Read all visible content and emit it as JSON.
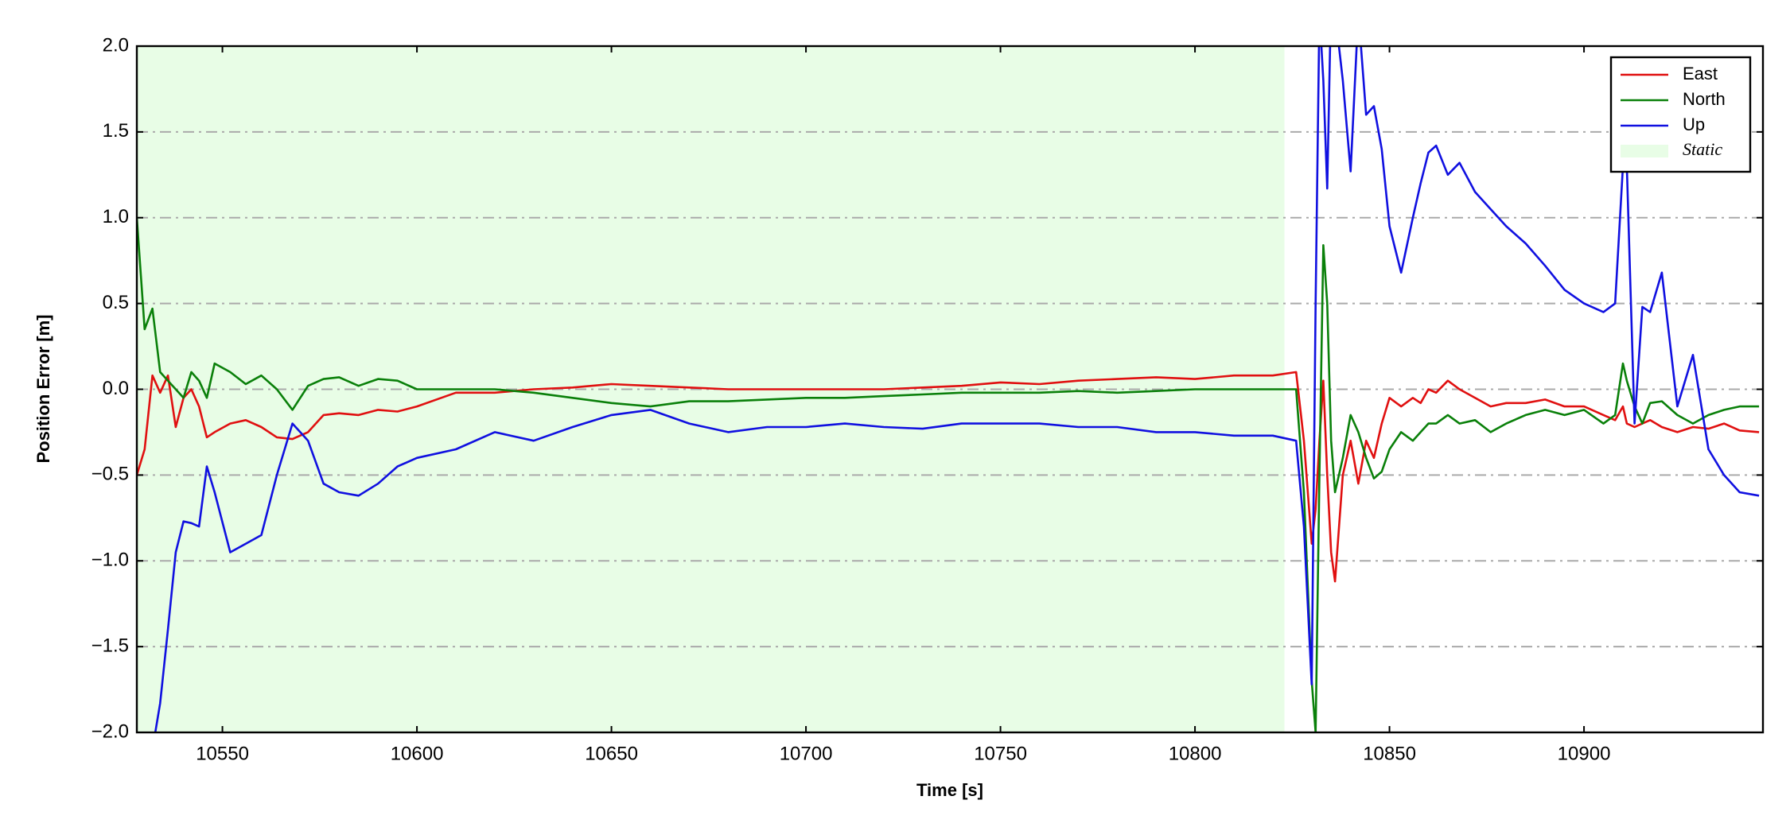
{
  "chart_data": {
    "type": "line",
    "xlabel": "Time [s]",
    "ylabel": "Position Error [m]",
    "x": [
      10528,
      10530,
      10532,
      10534,
      10536,
      10538,
      10540,
      10542,
      10544,
      10546,
      10548,
      10552,
      10556,
      10560,
      10564,
      10568,
      10572,
      10576,
      10580,
      10585,
      10590,
      10595,
      10600,
      10610,
      10620,
      10630,
      10640,
      10650,
      10660,
      10670,
      10680,
      10690,
      10700,
      10710,
      10720,
      10730,
      10740,
      10750,
      10760,
      10770,
      10780,
      10790,
      10800,
      10810,
      10820,
      10826,
      10828,
      10830,
      10831,
      10832,
      10833,
      10834,
      10835,
      10836,
      10838,
      10840,
      10842,
      10844,
      10846,
      10848,
      10850,
      10853,
      10856,
      10858,
      10860,
      10862,
      10865,
      10868,
      10872,
      10876,
      10880,
      10885,
      10890,
      10895,
      10900,
      10905,
      10908,
      10910,
      10911,
      10913,
      10915,
      10917,
      10920,
      10924,
      10928,
      10932,
      10936,
      10940,
      10945
    ],
    "series": [
      {
        "name": "East",
        "color": "#e01010",
        "values": [
          -0.5,
          -0.35,
          0.08,
          -0.02,
          0.08,
          -0.22,
          -0.05,
          0.0,
          -0.1,
          -0.28,
          -0.25,
          -0.2,
          -0.18,
          -0.22,
          -0.28,
          -0.29,
          -0.25,
          -0.15,
          -0.14,
          -0.15,
          -0.12,
          -0.13,
          -0.1,
          -0.02,
          -0.02,
          0.0,
          0.01,
          0.03,
          0.02,
          0.01,
          0.0,
          0.0,
          0.0,
          0.0,
          0.0,
          0.01,
          0.02,
          0.04,
          0.03,
          0.05,
          0.06,
          0.07,
          0.06,
          0.08,
          0.08,
          0.1,
          -0.3,
          -0.9,
          -0.7,
          -0.3,
          0.05,
          -0.5,
          -0.95,
          -1.12,
          -0.5,
          -0.3,
          -0.55,
          -0.3,
          -0.4,
          -0.2,
          -0.05,
          -0.1,
          -0.05,
          -0.08,
          0.0,
          -0.02,
          0.05,
          0.0,
          -0.05,
          -0.1,
          -0.08,
          -0.08,
          -0.06,
          -0.1,
          -0.1,
          -0.15,
          -0.18,
          -0.1,
          -0.2,
          -0.22,
          -0.2,
          -0.18,
          -0.22,
          -0.25,
          -0.22,
          -0.23,
          -0.2,
          -0.24,
          -0.25
        ]
      },
      {
        "name": "North",
        "color": "#0a800a",
        "values": [
          1.0,
          0.35,
          0.47,
          0.1,
          0.05,
          0.0,
          -0.05,
          0.1,
          0.05,
          -0.05,
          0.15,
          0.1,
          0.03,
          0.08,
          0.0,
          -0.12,
          0.02,
          0.06,
          0.07,
          0.02,
          0.06,
          0.05,
          0.0,
          0.0,
          0.0,
          -0.02,
          -0.05,
          -0.08,
          -0.1,
          -0.07,
          -0.07,
          -0.06,
          -0.05,
          -0.05,
          -0.04,
          -0.03,
          -0.02,
          -0.02,
          -0.02,
          -0.01,
          -0.02,
          -0.01,
          0.0,
          0.0,
          0.0,
          0.0,
          -0.6,
          -1.7,
          -2.0,
          -0.5,
          0.84,
          0.5,
          -0.3,
          -0.6,
          -0.4,
          -0.15,
          -0.25,
          -0.4,
          -0.52,
          -0.48,
          -0.35,
          -0.25,
          -0.3,
          -0.25,
          -0.2,
          -0.2,
          -0.15,
          -0.2,
          -0.18,
          -0.25,
          -0.2,
          -0.15,
          -0.12,
          -0.15,
          -0.12,
          -0.2,
          -0.15,
          0.15,
          0.05,
          -0.1,
          -0.2,
          -0.08,
          -0.07,
          -0.15,
          -0.2,
          -0.15,
          -0.12,
          -0.1,
          -0.1
        ]
      },
      {
        "name": "Up",
        "color": "#1010e0",
        "values": [
          null,
          null,
          -2.1,
          -1.83,
          -1.4,
          -0.95,
          -0.77,
          -0.78,
          -0.8,
          -0.45,
          -0.6,
          -0.95,
          -0.9,
          -0.85,
          -0.5,
          -0.2,
          -0.3,
          -0.55,
          -0.6,
          -0.62,
          -0.55,
          -0.45,
          -0.4,
          -0.35,
          -0.25,
          -0.3,
          -0.22,
          -0.15,
          -0.12,
          -0.2,
          -0.25,
          -0.22,
          -0.22,
          -0.2,
          -0.22,
          -0.23,
          -0.2,
          -0.2,
          -0.2,
          -0.22,
          -0.22,
          -0.25,
          -0.25,
          -0.27,
          -0.27,
          -0.3,
          -0.8,
          -1.72,
          0.5,
          2.2,
          1.8,
          1.17,
          2.3,
          2.2,
          1.8,
          1.27,
          2.2,
          1.6,
          1.65,
          1.4,
          0.95,
          0.68,
          1.0,
          1.2,
          1.38,
          1.42,
          1.25,
          1.32,
          1.15,
          1.05,
          0.95,
          0.85,
          0.72,
          0.58,
          0.5,
          0.45,
          0.5,
          1.3,
          1.3,
          -0.2,
          0.48,
          0.45,
          0.68,
          -0.1,
          0.2,
          -0.35,
          -0.5,
          -0.6,
          -0.62
        ]
      }
    ],
    "spans": [
      {
        "label": "Static",
        "start": 10528,
        "end": 10823,
        "color": "#e8fde6"
      }
    ],
    "xlim": [
      10528,
      10946
    ],
    "xticks": [
      10550,
      10600,
      10650,
      10700,
      10750,
      10800,
      10850,
      10900
    ],
    "ylim": [
      -2,
      2
    ],
    "yticks": [
      {
        "value": -2,
        "label": "−2.0"
      },
      {
        "value": -1.5,
        "label": "−1.5"
      },
      {
        "value": -1,
        "label": "−1.0"
      },
      {
        "value": -0.5,
        "label": "−0.5"
      },
      {
        "value": 0,
        "label": "0.0"
      },
      {
        "value": 0.5,
        "label": "0.5"
      },
      {
        "value": 1,
        "label": "1.0"
      },
      {
        "value": 1.5,
        "label": "1.5"
      },
      {
        "value": 2,
        "label": "2.0"
      }
    ],
    "grid": true,
    "legend": "upper right"
  }
}
